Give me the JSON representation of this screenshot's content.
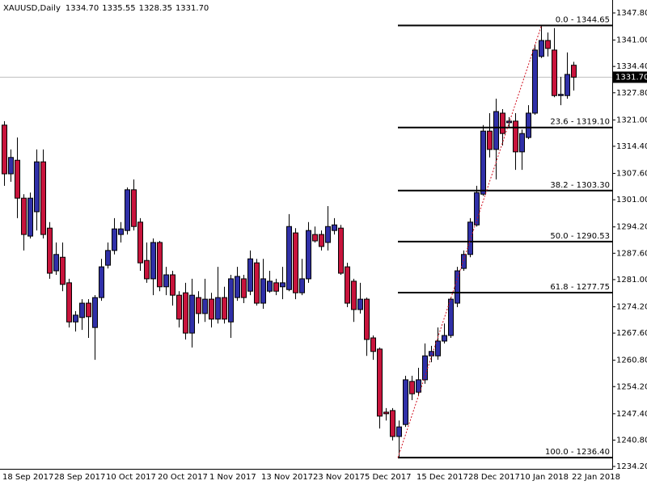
{
  "chart_data": {
    "type": "candlestick",
    "header": {
      "symbol": "XAUUSD,Daily",
      "ohlc": [
        "1334.70",
        "1335.55",
        "1328.35",
        "1331.70"
      ]
    },
    "categories": [
      "18 Sep 2017",
      null,
      null,
      null,
      null,
      null,
      null,
      null,
      "28 Sep 2017",
      null,
      null,
      null,
      null,
      null,
      null,
      null,
      "10 Oct 2017",
      null,
      null,
      null,
      null,
      null,
      null,
      null,
      "20 Oct 2017",
      null,
      null,
      null,
      null,
      null,
      null,
      null,
      "1 Nov 2017",
      null,
      null,
      null,
      null,
      null,
      null,
      null,
      "13 Nov 2017",
      null,
      null,
      null,
      null,
      null,
      null,
      null,
      "23 Nov 2017",
      null,
      null,
      null,
      null,
      null,
      null,
      null,
      "5 Dec 2017",
      null,
      null,
      null,
      null,
      null,
      null,
      null,
      "15 Dec 2017",
      null,
      null,
      null,
      null,
      null,
      null,
      null,
      "28 Dec 2017",
      null,
      null,
      null,
      null,
      null,
      null,
      null,
      "10 Jan 2018",
      null,
      null,
      null,
      null,
      null,
      null,
      null,
      "22 Jan 2018"
    ],
    "open": [
      1319.7,
      1307.5,
      1310.9,
      1301.4,
      1291.9,
      1298.0,
      1310.5,
      1293.9,
      1283.2,
      1286.6,
      1280.2,
      1270.4,
      1271.5,
      1275.1,
      1269.0,
      1276.5,
      1284.6,
      1288.3,
      1292.3,
      1293.3,
      1303.5,
      1295.4,
      1285.8,
      1281.2,
      1290.3,
      1279.2,
      1282.2,
      1277.1,
      1277.7,
      1267.6,
      1276.5,
      1272.5,
      1276.1,
      1271.1,
      1276.5,
      1270.4,
      1276.5,
      1281.2,
      1278.1,
      1285.2,
      1275.1,
      1278.1,
      1280.2,
      1279.2,
      1278.5,
      1292.7,
      1277.7,
      1281.2,
      1292.3,
      1292.3,
      1290.3,
      1293.3,
      1293.9,
      1284.2,
      1280.6,
      1273.5,
      1276.1,
      1266.4,
      1263.6,
      1247.8,
      1248.2,
      1241.7,
      1244.7,
      1255.5,
      1252.8,
      1255.9,
      1261.9,
      1261.9,
      1265.6,
      1267.0,
      1275.1,
      1283.8,
      1287.3,
      1294.7,
      1302.4,
      1318.2,
      1313.6,
      1322.7,
      1320.3,
      1320.7,
      1313.0,
      1316.6,
      1322.7,
      1336.9,
      1340.9,
      1338.5,
      1327.1,
      1327.1,
      1334.7
    ],
    "high": [
      1320.7,
      1313.6,
      1316.6,
      1302.4,
      1302.8,
      1313.6,
      1313.6,
      1295.4,
      1290.3,
      1290.3,
      1281.2,
      1273.1,
      1276.1,
      1276.1,
      1277.1,
      1286.2,
      1290.3,
      1296.4,
      1295.4,
      1304.1,
      1306.1,
      1296.4,
      1290.3,
      1291.3,
      1290.7,
      1284.2,
      1283.2,
      1278.1,
      1280.2,
      1281.2,
      1278.1,
      1281.2,
      1277.7,
      1284.2,
      1279.2,
      1282.2,
      1284.2,
      1282.2,
      1288.3,
      1286.2,
      1286.2,
      1283.2,
      1281.2,
      1284.2,
      1297.4,
      1293.9,
      1286.2,
      1295.4,
      1294.3,
      1293.3,
      1299.4,
      1296.4,
      1294.7,
      1285.2,
      1281.2,
      1280.2,
      1276.5,
      1267.0,
      1264.0,
      1248.8,
      1248.8,
      1245.7,
      1256.9,
      1256.9,
      1258.9,
      1265.0,
      1264.4,
      1269.0,
      1270.0,
      1276.5,
      1284.2,
      1288.3,
      1296.4,
      1304.5,
      1319.7,
      1322.7,
      1326.3,
      1323.7,
      1321.7,
      1322.7,
      1318.6,
      1324.7,
      1339.9,
      1344.65,
      1342.9,
      1344.0,
      1331.8,
      1337.9,
      1335.55
    ],
    "low": [
      1304.5,
      1305.5,
      1296.4,
      1288.3,
      1291.3,
      1293.3,
      1291.3,
      1281.2,
      1282.2,
      1278.1,
      1269.0,
      1268.0,
      1268.4,
      1266.4,
      1260.9,
      1275.7,
      1283.8,
      1287.3,
      1290.3,
      1292.3,
      1293.3,
      1283.2,
      1280.2,
      1277.1,
      1278.1,
      1277.1,
      1274.5,
      1269.0,
      1266.0,
      1264.0,
      1270.0,
      1270.4,
      1269.0,
      1270.0,
      1270.0,
      1266.4,
      1275.7,
      1275.1,
      1277.1,
      1274.5,
      1273.7,
      1277.7,
      1277.1,
      1276.1,
      1278.1,
      1276.1,
      1277.1,
      1280.2,
      1290.3,
      1288.3,
      1288.3,
      1292.3,
      1282.2,
      1274.1,
      1270.4,
      1272.5,
      1261.9,
      1260.9,
      1243.7,
      1245.7,
      1240.7,
      1236.4,
      1244.1,
      1250.8,
      1251.8,
      1254.9,
      1260.3,
      1260.9,
      1265.0,
      1266.4,
      1274.1,
      1283.2,
      1286.6,
      1294.3,
      1302.0,
      1311.6,
      1306.1,
      1314.6,
      1319.0,
      1308.5,
      1308.5,
      1316.2,
      1322.3,
      1336.5,
      1336.9,
      1326.7,
      1324.7,
      1326.3,
      1328.35
    ],
    "close": [
      1307.5,
      1311.6,
      1301.4,
      1292.3,
      1301.4,
      1310.5,
      1292.3,
      1282.6,
      1287.3,
      1279.8,
      1270.4,
      1272.1,
      1275.1,
      1271.7,
      1276.5,
      1284.2,
      1288.3,
      1293.7,
      1293.7,
      1303.5,
      1294.3,
      1285.2,
      1281.2,
      1290.3,
      1279.2,
      1282.2,
      1277.1,
      1271.1,
      1267.6,
      1277.1,
      1272.5,
      1276.1,
      1271.1,
      1276.5,
      1271.1,
      1281.2,
      1281.8,
      1276.5,
      1286.2,
      1275.1,
      1281.2,
      1280.6,
      1278.1,
      1280.2,
      1294.3,
      1277.7,
      1281.2,
      1293.3,
      1290.7,
      1289.3,
      1294.3,
      1294.7,
      1282.6,
      1275.1,
      1273.5,
      1276.1,
      1266.0,
      1263.0,
      1246.8,
      1247.4,
      1241.7,
      1244.1,
      1255.9,
      1252.4,
      1255.9,
      1261.9,
      1263.0,
      1265.6,
      1267.0,
      1276.1,
      1283.2,
      1287.3,
      1295.4,
      1302.8,
      1318.2,
      1313.6,
      1323.1,
      1317.6,
      1320.7,
      1313.0,
      1317.6,
      1322.7,
      1338.5,
      1340.9,
      1338.9,
      1327.1,
      1327.4,
      1332.4,
      1331.7
    ],
    "up_color": "#3030a8",
    "down_color": "#c8143c",
    "wick_color": "#000000",
    "ylim": [
      1233.6,
      1351.04
    ],
    "yticks": [
      {
        "value": 1347.8,
        "label": "1347.80"
      },
      {
        "value": 1341.0,
        "label": "1341.00"
      },
      {
        "value": 1334.4,
        "label": "1334.40"
      },
      {
        "value": 1327.8,
        "label": "1327.80"
      },
      {
        "value": 1321.0,
        "label": "1321.00"
      },
      {
        "value": 1314.4,
        "label": "1314.40"
      },
      {
        "value": 1307.6,
        "label": "1307.60"
      },
      {
        "value": 1301.0,
        "label": "1301.00"
      },
      {
        "value": 1294.2,
        "label": "1294.20"
      },
      {
        "value": 1287.6,
        "label": "1287.60"
      },
      {
        "value": 1281.0,
        "label": "1281.00"
      },
      {
        "value": 1274.2,
        "label": "1274.20"
      },
      {
        "value": 1267.6,
        "label": "1267.60"
      },
      {
        "value": 1260.8,
        "label": "1260.80"
      },
      {
        "value": 1254.2,
        "label": "1254.20"
      },
      {
        "value": 1247.4,
        "label": "1247.40"
      },
      {
        "value": 1240.8,
        "label": "1240.80"
      },
      {
        "value": 1234.2,
        "label": "1234.20"
      }
    ],
    "fib_levels": [
      {
        "value": 1344.65,
        "label": "0.0 - 1344.65"
      },
      {
        "value": 1319.1,
        "label": "23.6 - 1319.10"
      },
      {
        "value": 1303.3,
        "label": "38.2 - 1303.30"
      },
      {
        "value": 1290.53,
        "label": "50.0 - 1290.53"
      },
      {
        "value": 1277.75,
        "label": "61.8 - 1277.75"
      },
      {
        "value": 1236.4,
        "label": "100.0 - 1236.40"
      }
    ],
    "fib_color": "#000000",
    "trend_color": "#d01020",
    "current_price": {
      "value": 1331.7,
      "label": "1331.70"
    },
    "current_price_color": "#c0c0c0"
  }
}
